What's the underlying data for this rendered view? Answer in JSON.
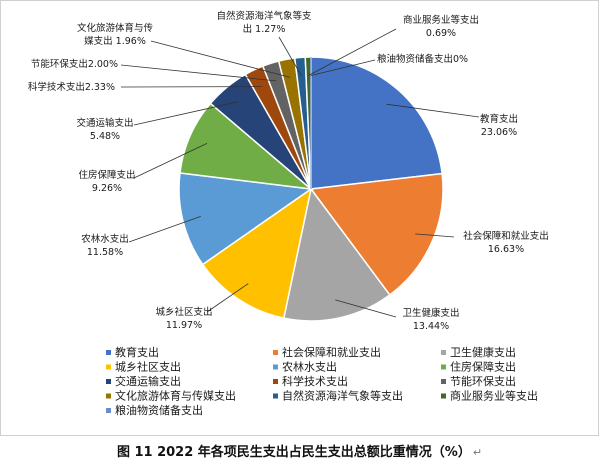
{
  "chart_data": {
    "type": "pie",
    "title": "",
    "slices": [
      {
        "name": "教育支出",
        "value": 23.06,
        "label": "23.06%",
        "color": "#4472C4"
      },
      {
        "name": "社会保障和就业支出",
        "value": 16.63,
        "label": "16.63%",
        "color": "#ED7D31"
      },
      {
        "name": "卫生健康支出",
        "value": 13.44,
        "label": "13.44%",
        "color": "#A5A5A5"
      },
      {
        "name": "城乡社区支出",
        "value": 11.97,
        "label": "11.97%",
        "color": "#FFC000"
      },
      {
        "name": "农林水支出",
        "value": 11.58,
        "label": "11.58%",
        "color": "#5B9BD5"
      },
      {
        "name": "住房保障支出",
        "value": 9.26,
        "label": "9.26%",
        "color": "#70AD47"
      },
      {
        "name": "交通运输支出",
        "value": 5.48,
        "label": "5.48%",
        "color": "#264478"
      },
      {
        "name": "科学技术支出",
        "value": 2.33,
        "label": "2.33%",
        "color": "#9E480E"
      },
      {
        "name": "节能环保支出",
        "value": 2.0,
        "label": "2.00%",
        "color": "#636363"
      },
      {
        "name": "文化旅游体育与传媒支出",
        "value": 1.96,
        "label": "1.96%",
        "color": "#997300"
      },
      {
        "name": "自然资源海洋气象等支出",
        "value": 1.27,
        "label": "1.27%",
        "color": "#255E91"
      },
      {
        "name": "商业服务业等支出",
        "value": 0.69,
        "label": "0.69%",
        "color": "#43682B"
      },
      {
        "name": "粮油物资储备支出",
        "value": 0,
        "label": "0%",
        "color": "#698ED0"
      }
    ],
    "legend_position": "bottom"
  },
  "caption": {
    "text": "图 11  2022 年各项民生支出占民生支出总额比重情况（%）",
    "return_mark": "↵"
  }
}
